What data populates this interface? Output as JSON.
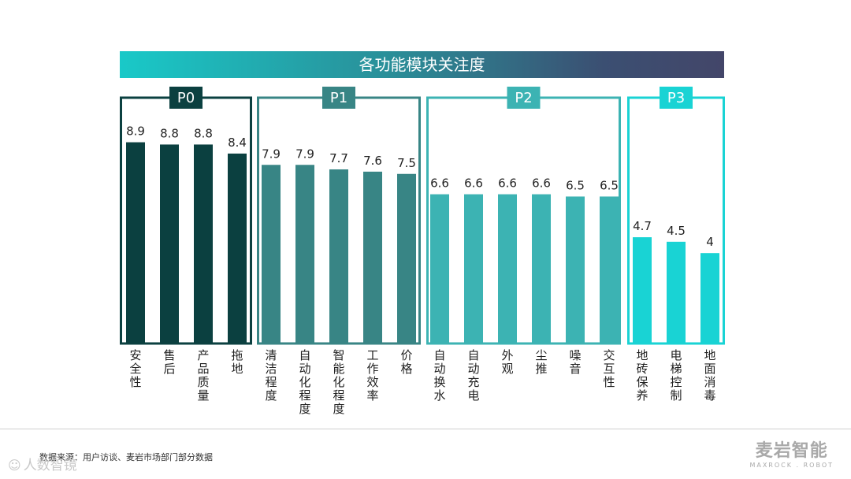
{
  "colors": {
    "P0": "#0b4040",
    "P1": "#388585",
    "P2": "#3cb3b3",
    "P3": "#19d3d4"
  },
  "chart_data": {
    "type": "bar",
    "title": "各功能模块关注度",
    "ylim": [
      0,
      10
    ],
    "groups": [
      {
        "name": "P0",
        "categories": [
          "安全性",
          "售后",
          "产品质量",
          "拖地"
        ],
        "values": [
          8.9,
          8.8,
          8.8,
          8.4
        ]
      },
      {
        "name": "P1",
        "categories": [
          "清洁程度",
          "自动化程度",
          "智能化程度",
          "工作效率",
          "价格"
        ],
        "values": [
          7.9,
          7.9,
          7.7,
          7.6,
          7.5
        ]
      },
      {
        "name": "P2",
        "categories": [
          "自动换水",
          "自动充电",
          "外观",
          "尘推",
          "噪音",
          "交互性"
        ],
        "values": [
          6.6,
          6.6,
          6.6,
          6.6,
          6.5,
          6.5
        ]
      },
      {
        "name": "P3",
        "categories": [
          "地砖保养",
          "电梯控制",
          "地面消毒"
        ],
        "values": [
          4.7,
          4.5,
          4
        ]
      }
    ]
  },
  "footer": {
    "source": "数据来源：用户访谈、麦岩市场部门部分数据",
    "brand_cn": "麦岩智能",
    "brand_en": "MAXROCK . ROBOT",
    "watermark_icon": "logo-icon",
    "watermark": "人数智镜"
  }
}
